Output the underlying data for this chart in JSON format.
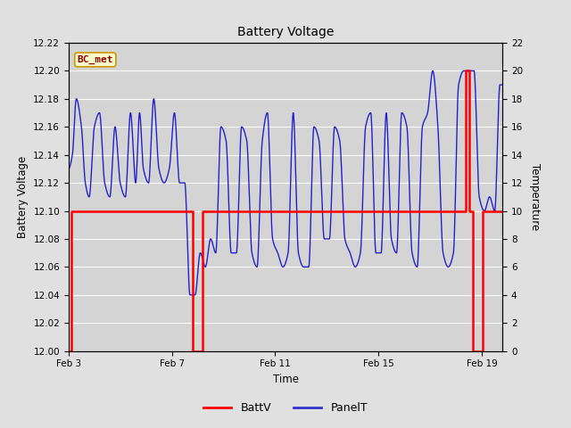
{
  "title": "Battery Voltage",
  "xlabel": "Time",
  "ylabel_left": "Battery Voltage",
  "ylabel_right": "Temperature",
  "ylim_left": [
    12.0,
    12.22
  ],
  "ylim_right": [
    0,
    22
  ],
  "yticks_left": [
    12.0,
    12.02,
    12.04,
    12.06,
    12.08,
    12.1,
    12.12,
    12.14,
    12.16,
    12.18,
    12.2,
    12.22
  ],
  "yticks_right": [
    0,
    2,
    4,
    6,
    8,
    10,
    12,
    14,
    16,
    18,
    20,
    22
  ],
  "background_color": "#e0e0e0",
  "plot_bg_color": "#d4d4d4",
  "grid_color": "#ffffff",
  "annotation_text": "BC_met",
  "annotation_color": "#8B0000",
  "annotation_bg": "#ffffcc",
  "annotation_border": "#cc9900",
  "legend_items": [
    "BattV",
    "PanelT"
  ],
  "legend_colors": [
    "#ff0000",
    "#3333cc"
  ],
  "batt_color": "#ff0000",
  "panel_color": "#2222cc",
  "x_tick_labels": [
    "Feb 3",
    "Feb 7",
    "Feb 11",
    "Feb 15",
    "Feb 19"
  ],
  "x_tick_positions": [
    3,
    7,
    11,
    15,
    19
  ],
  "xlim": [
    3,
    19.8
  ]
}
